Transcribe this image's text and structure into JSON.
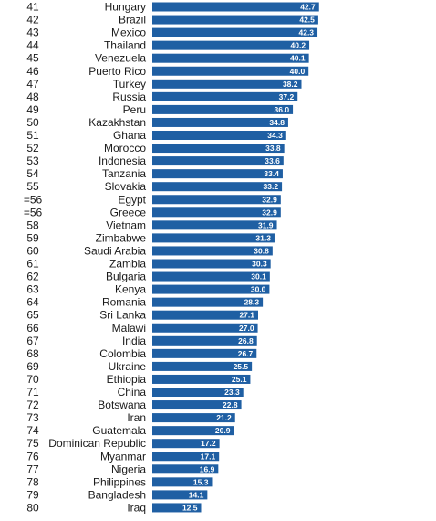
{
  "chart_data": {
    "type": "bar",
    "orientation": "horizontal",
    "ranks": [
      "41",
      "42",
      "43",
      "44",
      "45",
      "46",
      "47",
      "48",
      "49",
      "50",
      "51",
      "52",
      "53",
      "54",
      "55",
      "=56",
      "=56",
      "58",
      "59",
      "60",
      "61",
      "62",
      "63",
      "64",
      "65",
      "66",
      "67",
      "68",
      "69",
      "70",
      "71",
      "72",
      "73",
      "74",
      "75",
      "76",
      "77",
      "78",
      "79",
      "80"
    ],
    "categories": [
      "Hungary",
      "Brazil",
      "Mexico",
      "Thailand",
      "Venezuela",
      "Puerto Rico",
      "Turkey",
      "Russia",
      "Peru",
      "Kazakhstan",
      "Ghana",
      "Morocco",
      "Indonesia",
      "Tanzania",
      "Slovakia",
      "Egypt",
      "Greece",
      "Vietnam",
      "Zimbabwe",
      "Saudi Arabia",
      "Zambia",
      "Bulgaria",
      "Kenya",
      "Romania",
      "Sri Lanka",
      "Malawi",
      "India",
      "Colombia",
      "Ukraine",
      "Ethiopia",
      "China",
      "Botswana",
      "Iran",
      "Guatemala",
      "Dominican Republic",
      "Myanmar",
      "Nigeria",
      "Philippines",
      "Bangladesh",
      "Iraq"
    ],
    "values": [
      42.7,
      42.5,
      42.3,
      40.2,
      40.1,
      40.0,
      38.2,
      37.2,
      36.0,
      34.8,
      34.3,
      33.8,
      33.6,
      33.4,
      33.2,
      32.9,
      32.9,
      31.9,
      31.3,
      30.8,
      30.3,
      30.1,
      30.0,
      28.3,
      27.1,
      27.0,
      26.8,
      26.7,
      25.5,
      25.1,
      23.3,
      22.8,
      21.2,
      20.9,
      17.2,
      17.1,
      16.9,
      15.3,
      14.1,
      12.5
    ],
    "value_labels": [
      "42.7",
      "42.5",
      "42.3",
      "40.2",
      "40.1",
      "40.0",
      "38.2",
      "37.2",
      "36.0",
      "34.8",
      "34.3",
      "33.8",
      "33.6",
      "33.4",
      "33.2",
      "32.9",
      "32.9",
      "31.9",
      "31.3",
      "30.8",
      "30.3",
      "30.1",
      "30.0",
      "28.3",
      "27.1",
      "27.0",
      "26.8",
      "26.7",
      "25.5",
      "25.1",
      "23.3",
      "22.8",
      "21.2",
      "20.9",
      "17.2",
      "17.1",
      "16.9",
      "15.3",
      "14.1",
      "12.5"
    ],
    "bar_color": "#1f5fa3",
    "label_color": "#ffffff",
    "grid": false,
    "legend": "none"
  }
}
